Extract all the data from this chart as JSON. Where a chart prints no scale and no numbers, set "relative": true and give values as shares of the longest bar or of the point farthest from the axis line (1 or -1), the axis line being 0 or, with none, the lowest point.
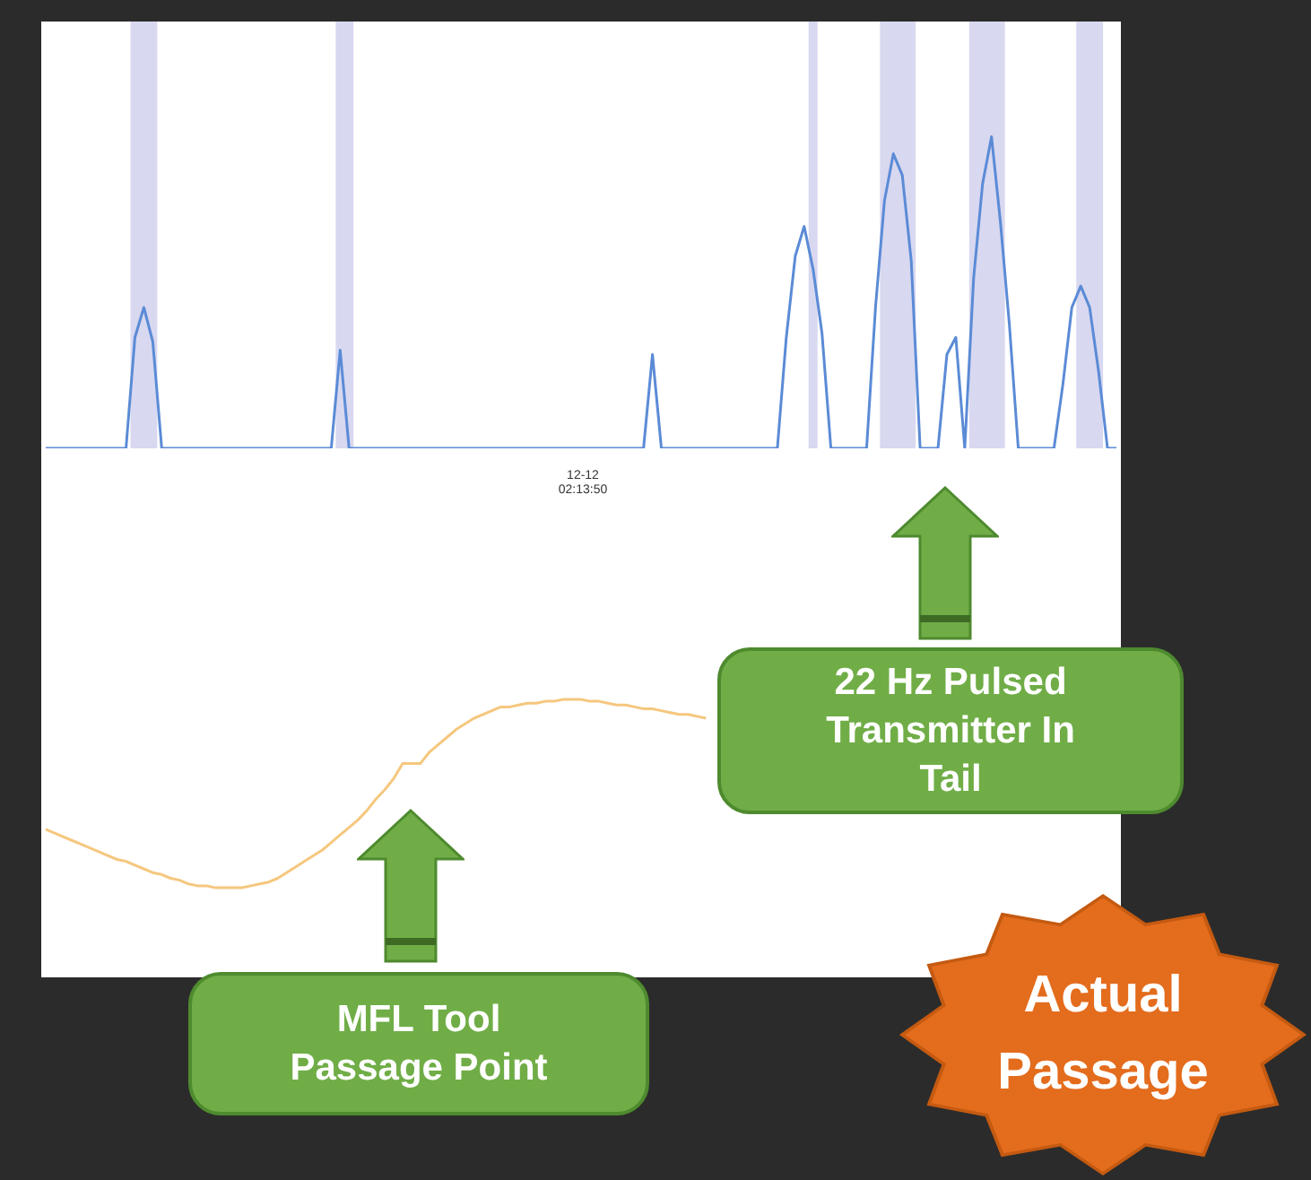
{
  "chart_data": [
    {
      "type": "line",
      "relative": true,
      "tick_labels": false,
      "categories": [
        null,
        null,
        null,
        null,
        null,
        null,
        null,
        null,
        null,
        null,
        null,
        null,
        null,
        null,
        null,
        null,
        null,
        null,
        null,
        null,
        null,
        null,
        null,
        null,
        null,
        null,
        null,
        null,
        null,
        null,
        null,
        null,
        null,
        null,
        null,
        null,
        null,
        null,
        null,
        null,
        null,
        null,
        null,
        null,
        null,
        null,
        null,
        null,
        null,
        null,
        null,
        null,
        null,
        null,
        null,
        null,
        null,
        null,
        null,
        null,
        null,
        null,
        null,
        null,
        null,
        null,
        null,
        null,
        null,
        null,
        null,
        null,
        null,
        null,
        null,
        null,
        null,
        null,
        null,
        null,
        null,
        null,
        null,
        null,
        null,
        null,
        null,
        null,
        null,
        null,
        null,
        null,
        null,
        null,
        null,
        null,
        null,
        null,
        null,
        null,
        null,
        null,
        null,
        null,
        null,
        null,
        null,
        null,
        null,
        null,
        null,
        null,
        null,
        null,
        null,
        null,
        null,
        null,
        null,
        null,
        null
      ],
      "series": [
        {
          "type": "area",
          "color": "#d8d8f0",
          "values": [
            0,
            0,
            0,
            0,
            0,
            0,
            0,
            0,
            0,
            0,
            1,
            1,
            1,
            0,
            0,
            0,
            0,
            0,
            0,
            0,
            0,
            0,
            0,
            0,
            0,
            0,
            0,
            0,
            0,
            0,
            0,
            0,
            0,
            1,
            1,
            0,
            0,
            0,
            0,
            0,
            0,
            0,
            0,
            0,
            0,
            0,
            0,
            0,
            0,
            0,
            0,
            0,
            0,
            0,
            0,
            0,
            0,
            0,
            0,
            0,
            0,
            0,
            0,
            0,
            0,
            0,
            0,
            0,
            0,
            0,
            0,
            0,
            0,
            0,
            0,
            0,
            0,
            0,
            0,
            0,
            0,
            0,
            0,
            0,
            0,
            0,
            1,
            0,
            0,
            0,
            0,
            0,
            0,
            0,
            1,
            1,
            1,
            1,
            0,
            0,
            0,
            0,
            0,
            0,
            1,
            1,
            1,
            1,
            0,
            0,
            0,
            0,
            0,
            0,
            0,
            0,
            1,
            1,
            1,
            0,
            0
          ]
        },
        {
          "color": "#5b8bd6",
          "values": [
            0,
            0,
            0,
            0,
            0,
            0,
            0,
            0,
            0,
            0,
            0.26,
            0.33,
            0.25,
            0,
            0,
            0,
            0,
            0,
            0,
            0,
            0,
            0,
            0,
            0,
            0,
            0,
            0,
            0,
            0,
            0,
            0,
            0,
            0,
            0.23,
            0,
            0,
            0,
            0,
            0,
            0,
            0,
            0,
            0,
            0,
            0,
            0,
            0,
            0,
            0,
            0,
            0,
            0,
            0,
            0,
            0,
            0,
            0,
            0,
            0,
            0,
            0,
            0,
            0,
            0,
            0,
            0,
            0,
            0,
            0.22,
            0,
            0,
            0,
            0,
            0,
            0,
            0,
            0,
            0,
            0,
            0,
            0,
            0,
            0,
            0.26,
            0.45,
            0.52,
            0.42,
            0.27,
            0,
            0,
            0,
            0,
            0,
            0.33,
            0.58,
            0.69,
            0.64,
            0.44,
            0,
            0,
            0,
            0.22,
            0.26,
            0,
            0.4,
            0.62,
            0.73,
            0.53,
            0.29,
            0,
            0,
            0,
            0,
            0,
            0.15,
            0.33,
            0.38,
            0.33,
            0.18,
            0,
            0
          ]
        }
      ]
    },
    {
      "type": "line",
      "relative": true,
      "tick_labels": false,
      "categories": [
        null,
        null,
        null,
        null,
        null,
        null,
        null,
        null,
        null,
        null,
        null,
        null,
        null,
        null,
        null,
        null,
        null,
        null,
        null,
        null,
        null,
        null,
        null,
        null,
        null,
        null,
        null,
        null,
        null,
        null,
        null,
        null,
        null,
        null,
        null,
        null,
        null,
        null,
        null,
        null,
        null,
        null,
        null,
        null,
        null,
        null,
        null,
        null,
        null,
        null,
        null,
        null,
        null,
        null,
        null,
        null,
        null,
        null,
        null,
        null,
        null,
        null,
        null,
        null,
        null,
        null,
        null,
        null,
        null,
        null,
        null,
        null,
        null,
        null,
        null,
        null,
        null,
        null,
        null,
        null,
        null,
        null,
        null,
        null,
        null,
        null,
        null,
        null,
        null,
        null,
        null,
        null,
        null,
        null,
        null,
        null,
        null,
        null,
        null,
        null,
        null,
        null,
        null,
        null,
        null,
        null,
        null,
        null,
        null,
        null,
        null,
        null,
        null,
        null,
        null,
        null,
        null,
        null,
        null,
        null,
        null
      ],
      "series": [
        {
          "color": "#f5c77e",
          "values": [
            0.31,
            0.29,
            0.27,
            0.25,
            0.23,
            0.21,
            0.19,
            0.17,
            0.15,
            0.14,
            0.12,
            0.1,
            0.08,
            0.07,
            0.05,
            0.04,
            0.02,
            0.01,
            0.01,
            0,
            0,
            0,
            0,
            0.01,
            0.02,
            0.03,
            0.05,
            0.08,
            0.11,
            0.14,
            0.17,
            0.2,
            0.24,
            0.28,
            0.32,
            0.36,
            0.41,
            0.47,
            0.52,
            0.58,
            0.66,
            0.66,
            0.66,
            0.72,
            0.76,
            0.8,
            0.84,
            0.87,
            0.9,
            0.92,
            0.94,
            0.96,
            0.96,
            0.97,
            0.98,
            0.98,
            0.99,
            0.99,
            1,
            1,
            1,
            0.99,
            0.99,
            0.98,
            0.97,
            0.97,
            0.96,
            0.95,
            0.95,
            0.94,
            0.93,
            0.92,
            0.92,
            0.91,
            0.9,
            null,
            null,
            null,
            null,
            null,
            null,
            null,
            null,
            null,
            null,
            null,
            null,
            null,
            null,
            null,
            null,
            null,
            null,
            null,
            null,
            null,
            null,
            null,
            null,
            null,
            null,
            null,
            null,
            null,
            null,
            null,
            null,
            null,
            null,
            null,
            null,
            null,
            null,
            null,
            null,
            null,
            null,
            null,
            null,
            null,
            null
          ]
        }
      ],
      "annotations": [
        "12-12\n02:13:50",
        "22 Hz Pulsed Transmitter In Tail",
        "MFL Tool Passage Point",
        "Actual Passage"
      ]
    }
  ]
}
